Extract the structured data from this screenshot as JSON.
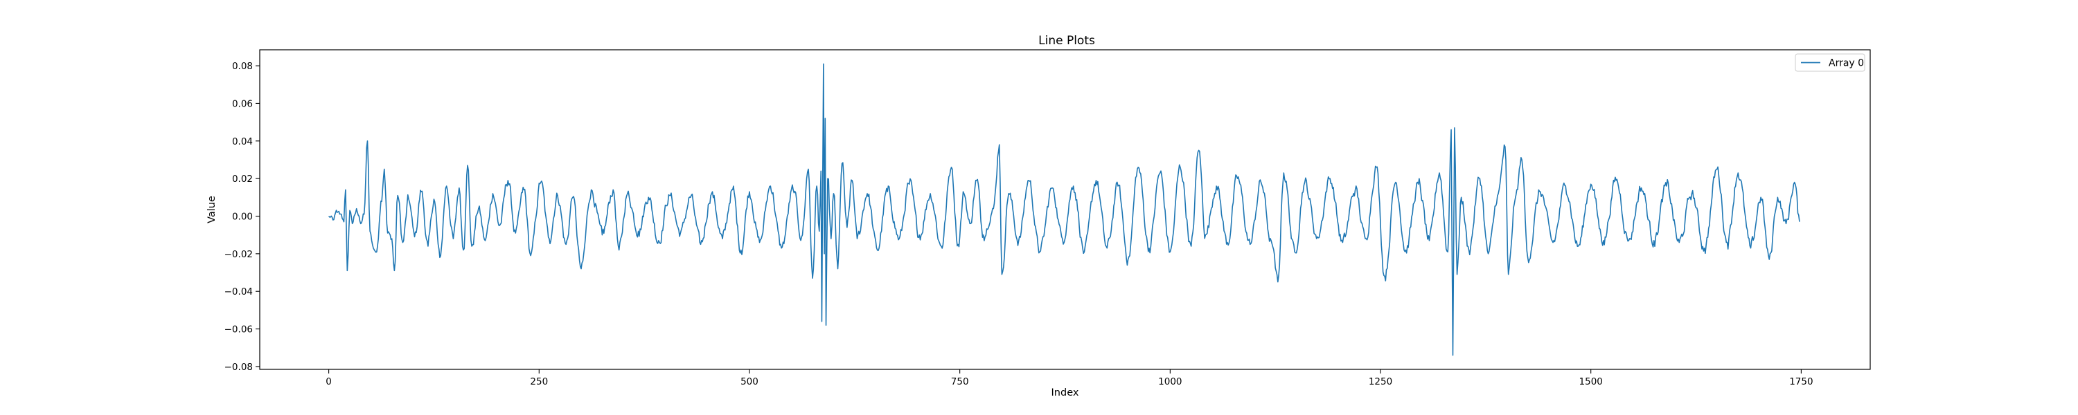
{
  "chart_data": {
    "type": "line",
    "title": "Line Plots",
    "xlabel": "Index",
    "ylabel": "Value",
    "xlim": [
      -82,
      1832
    ],
    "ylim": [
      -0.0815,
      0.0885
    ],
    "x_ticks": [
      0,
      250,
      500,
      750,
      1000,
      1250,
      1500,
      1750
    ],
    "y_ticks": [
      -0.08,
      -0.06,
      -0.04,
      -0.02,
      0.0,
      0.02,
      0.04,
      0.06,
      0.08
    ],
    "x_tick_labels": [
      "0",
      "250",
      "500",
      "750",
      "1000",
      "1250",
      "1500",
      "1750"
    ],
    "y_tick_labels": [
      "−0.08",
      "−0.06",
      "−0.04",
      "−0.02",
      "0.00",
      "0.02",
      "0.04",
      "0.06",
      "0.08"
    ],
    "legend": {
      "position": "top-right",
      "entries": [
        "Array 0"
      ]
    },
    "grid": false,
    "series": [
      {
        "name": "Array 0",
        "color": "#1f77b4",
        "n_points": 1749,
        "x_start": 0,
        "x_step": 1,
        "anchors": [
          [
            0,
            0.0
          ],
          [
            5,
            -0.002
          ],
          [
            10,
            0.002
          ],
          [
            15,
            0.001
          ],
          [
            18,
            -0.003
          ],
          [
            20,
            0.014
          ],
          [
            22,
            -0.029
          ],
          [
            25,
            0.003
          ],
          [
            28,
            -0.004
          ],
          [
            33,
            0.004
          ],
          [
            38,
            -0.004
          ],
          [
            42,
            0.001
          ],
          [
            46,
            0.04
          ],
          [
            49,
            -0.008
          ],
          [
            53,
            -0.017
          ],
          [
            57,
            -0.019
          ],
          [
            62,
            0.008
          ],
          [
            66,
            0.025
          ],
          [
            70,
            -0.009
          ],
          [
            75,
            -0.012
          ],
          [
            78,
            -0.029
          ],
          [
            82,
            0.011
          ],
          [
            88,
            -0.014
          ],
          [
            95,
            0.009
          ],
          [
            102,
            -0.011
          ],
          [
            110,
            0.013
          ],
          [
            118,
            -0.016
          ],
          [
            125,
            0.009
          ],
          [
            132,
            -0.022
          ],
          [
            140,
            0.016
          ],
          [
            148,
            -0.012
          ],
          [
            155,
            0.015
          ],
          [
            160,
            -0.018
          ],
          [
            165,
            0.027
          ],
          [
            170,
            -0.016
          ],
          [
            178,
            0.004
          ],
          [
            186,
            -0.013
          ],
          [
            195,
            0.012
          ],
          [
            203,
            -0.005
          ],
          [
            213,
            0.019
          ],
          [
            222,
            -0.009
          ],
          [
            232,
            0.014
          ],
          [
            240,
            -0.021
          ],
          [
            252,
            0.018
          ],
          [
            262,
            -0.012
          ],
          [
            272,
            0.011
          ],
          [
            282,
            -0.015
          ],
          [
            290,
            0.01
          ],
          [
            300,
            -0.028
          ],
          [
            312,
            0.014
          ],
          [
            325,
            -0.01
          ],
          [
            338,
            0.014
          ],
          [
            345,
            -0.018
          ],
          [
            355,
            0.012
          ],
          [
            368,
            -0.008
          ],
          [
            380,
            0.01
          ],
          [
            392,
            -0.013
          ],
          [
            405,
            0.011
          ],
          [
            418,
            -0.009
          ],
          [
            430,
            0.01
          ],
          [
            442,
            -0.015
          ],
          [
            455,
            0.012
          ],
          [
            468,
            -0.012
          ],
          [
            480,
            0.014
          ],
          [
            490,
            -0.018
          ],
          [
            500,
            0.013
          ],
          [
            512,
            -0.014
          ],
          [
            525,
            0.016
          ],
          [
            538,
            -0.017
          ],
          [
            552,
            0.014
          ],
          [
            562,
            -0.011
          ],
          [
            570,
            0.025
          ],
          [
            575,
            -0.033
          ],
          [
            580,
            0.016
          ],
          [
            583,
            -0.008
          ],
          [
            585,
            0.024
          ],
          [
            586,
            -0.056
          ],
          [
            588,
            0.081
          ],
          [
            589,
            -0.02
          ],
          [
            590,
            0.052
          ],
          [
            591,
            -0.058
          ],
          [
            593,
            0.02
          ],
          [
            597,
            -0.012
          ],
          [
            600,
            0.012
          ],
          [
            605,
            -0.028
          ],
          [
            610,
            0.028
          ],
          [
            616,
            -0.006
          ],
          [
            622,
            0.019
          ],
          [
            628,
            -0.012
          ],
          [
            640,
            0.012
          ],
          [
            652,
            -0.018
          ],
          [
            664,
            0.013
          ],
          [
            678,
            -0.012
          ],
          [
            690,
            0.017
          ],
          [
            702,
            -0.01
          ],
          [
            715,
            0.012
          ],
          [
            728,
            -0.016
          ],
          [
            740,
            0.026
          ],
          [
            748,
            -0.015
          ],
          [
            755,
            0.012
          ],
          [
            762,
            -0.004
          ],
          [
            770,
            0.019
          ],
          [
            778,
            -0.01
          ],
          [
            790,
            0.004
          ],
          [
            797,
            0.038
          ],
          [
            800,
            -0.031
          ],
          [
            808,
            0.012
          ],
          [
            820,
            -0.013
          ],
          [
            832,
            0.019
          ],
          [
            845,
            -0.019
          ],
          [
            860,
            0.015
          ],
          [
            872,
            -0.012
          ],
          [
            885,
            0.016
          ],
          [
            898,
            -0.019
          ],
          [
            912,
            0.019
          ],
          [
            925,
            -0.017
          ],
          [
            938,
            0.016
          ],
          [
            950,
            -0.023
          ],
          [
            962,
            0.026
          ],
          [
            975,
            -0.017
          ],
          [
            988,
            0.023
          ],
          [
            1000,
            -0.019
          ],
          [
            1012,
            0.026
          ],
          [
            1025,
            -0.016
          ],
          [
            1034,
            0.035
          ],
          [
            1042,
            -0.01
          ],
          [
            1055,
            0.016
          ],
          [
            1068,
            -0.014
          ],
          [
            1080,
            0.02
          ],
          [
            1095,
            -0.015
          ],
          [
            1108,
            0.018
          ],
          [
            1120,
            -0.013
          ],
          [
            1128,
            -0.035
          ],
          [
            1135,
            0.023
          ],
          [
            1148,
            -0.019
          ],
          [
            1160,
            0.018
          ],
          [
            1175,
            -0.011
          ],
          [
            1190,
            0.02
          ],
          [
            1205,
            -0.014
          ],
          [
            1220,
            0.014
          ],
          [
            1232,
            -0.012
          ],
          [
            1245,
            0.026
          ],
          [
            1255,
            -0.032
          ],
          [
            1268,
            0.018
          ],
          [
            1280,
            -0.018
          ],
          [
            1295,
            0.017
          ],
          [
            1308,
            -0.013
          ],
          [
            1320,
            0.023
          ],
          [
            1330,
            -0.019
          ],
          [
            1334,
            0.046
          ],
          [
            1336,
            -0.074
          ],
          [
            1338,
            0.047
          ],
          [
            1341,
            -0.031
          ],
          [
            1346,
            0.01
          ],
          [
            1355,
            -0.018
          ],
          [
            1368,
            0.02
          ],
          [
            1378,
            -0.02
          ],
          [
            1390,
            0.012
          ],
          [
            1398,
            0.037
          ],
          [
            1402,
            -0.031
          ],
          [
            1410,
            0.009
          ],
          [
            1418,
            0.03
          ],
          [
            1425,
            -0.022
          ],
          [
            1440,
            0.013
          ],
          [
            1455,
            -0.014
          ],
          [
            1470,
            0.016
          ],
          [
            1485,
            -0.016
          ],
          [
            1500,
            0.017
          ],
          [
            1515,
            -0.013
          ],
          [
            1530,
            0.019
          ],
          [
            1545,
            -0.013
          ],
          [
            1560,
            0.015
          ],
          [
            1575,
            -0.013
          ],
          [
            1590,
            0.016
          ],
          [
            1605,
            -0.014
          ],
          [
            1620,
            0.012
          ],
          [
            1635,
            -0.017
          ],
          [
            1650,
            0.025
          ],
          [
            1662,
            -0.014
          ],
          [
            1675,
            0.023
          ],
          [
            1690,
            -0.017
          ],
          [
            1702,
            0.01
          ],
          [
            1712,
            -0.023
          ],
          [
            1722,
            0.01
          ],
          [
            1732,
            -0.004
          ],
          [
            1742,
            0.018
          ],
          [
            1748,
            -0.003
          ]
        ]
      }
    ]
  }
}
